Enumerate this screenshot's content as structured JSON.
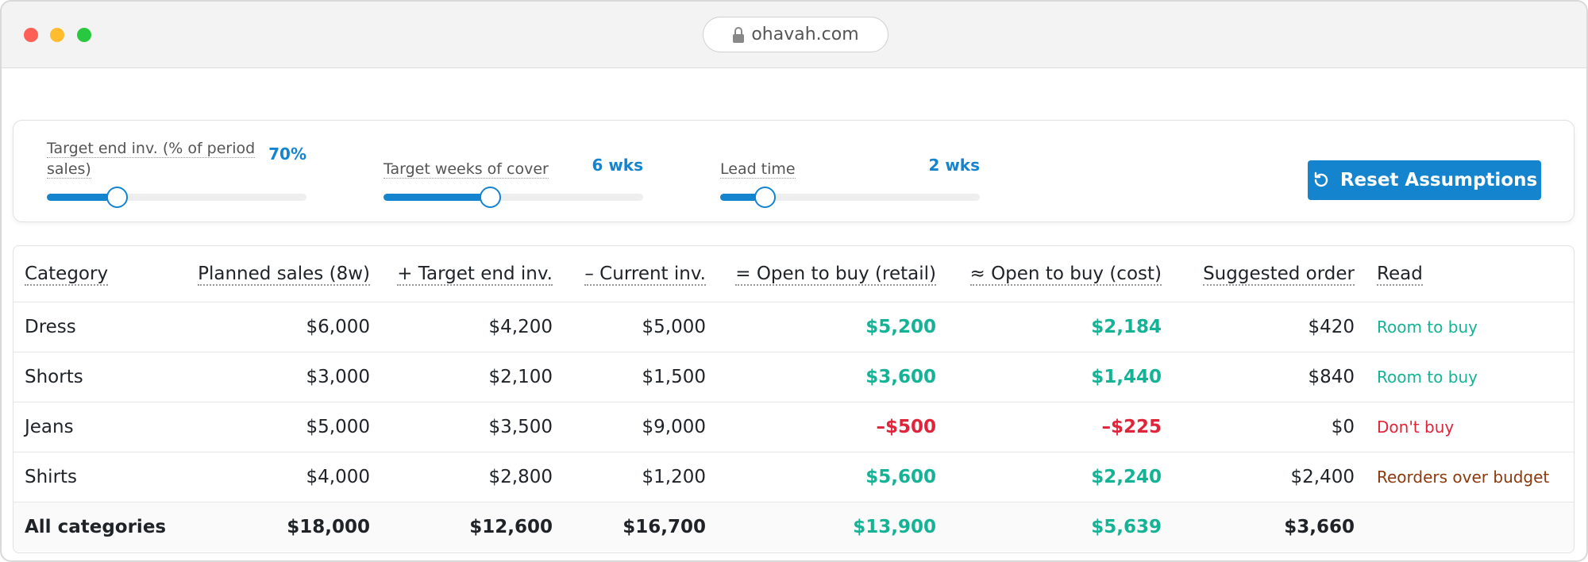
{
  "browser": {
    "url": "ohavah.com"
  },
  "controls": {
    "sliders": [
      {
        "label": "Target end inv. (% of period sales)",
        "value_label": "70%"
      },
      {
        "label": "Target weeks of cover",
        "value_label": "6 wks"
      },
      {
        "label": "Lead time",
        "value_label": "2 wks"
      }
    ],
    "button": "Reset Assumptions"
  },
  "table": {
    "headers": [
      "Category",
      "Planned sales (8w)",
      "+ Target end inv.",
      "– Current inv.",
      "= Open to buy (retail)",
      "≈ Open to buy (cost)",
      "Suggested order",
      "Read"
    ],
    "rows": [
      {
        "cells": [
          "Dress",
          "$6,000",
          "$4,200",
          "$5,000",
          "$5,200",
          "$2,184",
          "$420",
          "Room to buy"
        ],
        "otb_color": "#15b395",
        "read_color": "#15b395"
      },
      {
        "cells": [
          "Shorts",
          "$3,000",
          "$2,100",
          "$1,500",
          "$3,600",
          "$1,440",
          "$840",
          "Room to buy"
        ],
        "otb_color": "#15b395",
        "read_color": "#15b395"
      },
      {
        "cells": [
          "Jeans",
          "$5,000",
          "$3,500",
          "$9,000",
          "–$500",
          "–$225",
          "$0",
          "Don't buy"
        ],
        "otb_color": "#e0243a",
        "read_color": "#e0243a"
      },
      {
        "cells": [
          "Shirts",
          "$4,000",
          "$2,800",
          "$1,200",
          "$5,600",
          "$2,240",
          "$2,400",
          "Reorders over budget"
        ],
        "otb_color": "#15b395",
        "read_color": "#8a3a0e"
      }
    ],
    "total": {
      "cells": [
        "All categories",
        "$18,000",
        "$12,600",
        "$16,700",
        "$13,900",
        "$5,639",
        "$3,660"
      ],
      "otb_color": "#15b395"
    }
  }
}
